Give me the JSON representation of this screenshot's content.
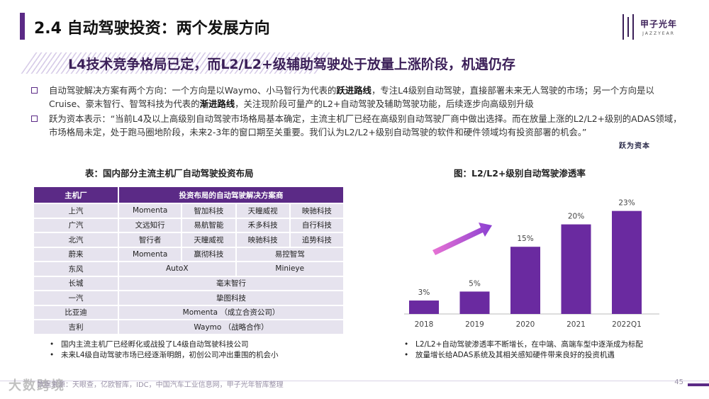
{
  "header": {
    "title": "2.4 自动驾驶投资：两个发展方向",
    "logo_cn": "甲子光年",
    "logo_en": "JAZZYEAR"
  },
  "headline": "L4技术竞争格局已定，而L2/L2+级辅助驾驶处于放量上涨阶段，机遇仍存",
  "bullets": [
    {
      "parts": [
        {
          "t": "自动驾驶解决方案有两个方向：一个方向是以Waymo、小马智行为代表的",
          "b": false
        },
        {
          "t": "跃进路线",
          "b": true
        },
        {
          "t": "，专注L4级别自动驾驶，直接部署未来无人驾驶的市场；另一个方向是以Cruise、豪末智行、智驾科技为代表的",
          "b": false
        },
        {
          "t": "渐进路线",
          "b": true
        },
        {
          "t": "，关注现阶段可量产的L2+自动驾驶及辅助驾驶功能，后续逐步向高级别升级",
          "b": false
        }
      ]
    },
    {
      "parts": [
        {
          "t": "跃为资本表示：“当前L4及以上高级别自动驾驶市场格局基本确定，主流主机厂已经在高级别自动驾驶厂商中做出选择。而在放量上涨的L2/L2+级别的ADAS领域，市场格局未定，处于跑马圈地阶段，未来2-3年的窗口期至关重要。我们认为L2/L2+级别自动驾驶的软件和硬件领域均有投资部署的机会。”",
          "b": false
        }
      ]
    }
  ],
  "source_mark": "跃为资本",
  "table": {
    "title": "表：国内部分主流主机厂自动驾驶投资布局",
    "headers": [
      "主机厂",
      "投资布局的自动驾驶解决方案商"
    ],
    "rows": [
      {
        "brand": "上汽",
        "cells": [
          "Momenta",
          "智加科技",
          "天瞳威视",
          "映驰科技"
        ]
      },
      {
        "brand": "广汽",
        "cells": [
          "文远知行",
          "易航智能",
          "禾多科技",
          "自行科技"
        ]
      },
      {
        "brand": "北汽",
        "cells": [
          "智行者",
          "天瞳威视",
          "映驰科技",
          "追势科技"
        ]
      },
      {
        "brand": "蔚来",
        "cells": [
          "Momenta",
          "赢彻科技",
          "易控智驾"
        ]
      },
      {
        "brand": "东风",
        "cells": [
          "AutoX",
          "Minieye"
        ]
      },
      {
        "brand": "长城",
        "cells": [
          "毫末智行"
        ]
      },
      {
        "brand": "一汽",
        "cells": [
          "挚图科技"
        ]
      },
      {
        "brand": "比亚迪",
        "cells": [
          "Momenta （成立合资公司）"
        ]
      },
      {
        "brand": "吉利",
        "cells": [
          "Waymo （战略合作）"
        ]
      }
    ]
  },
  "notes_left": [
    "国内主流主机厂已经孵化或战投了L4级自动驾驶科技公司",
    "未来L4级自动驾驶市场已经逐渐明朗，初创公司冲出重围的机会小"
  ],
  "chart_title": "图：L2/L2+级别自动驾驶渗透率",
  "chart_data": {
    "type": "bar",
    "title": "图：L2/L2+级别自动驾驶渗透率",
    "categories": [
      "2018",
      "2019",
      "2020",
      "2021",
      "2022Q1"
    ],
    "values": [
      3,
      5,
      15,
      20,
      23
    ],
    "value_labels": [
      "3%",
      "5%",
      "15%",
      "20%",
      "23%"
    ],
    "ylim": [
      0,
      25
    ],
    "color": "#6a2aa0",
    "grid": false
  },
  "notes_right": [
    "L2/L2+自动驾驶渗透率不断增长，在中端、高端车型中逐渐成为标配",
    "放量增长给ADAS系统及其相关感知硬件带来良好的投资机遇"
  ],
  "footer": {
    "source": "数据来源：天眼查，亿欧智库，IDC，中国汽车工业信息网，甲子光年智库整理",
    "page": "45",
    "watermark": "大数跨境"
  },
  "colors": {
    "accent": "#5b2a86",
    "table_cell": "#e6e3ee",
    "bar": "#6a2aa0"
  }
}
